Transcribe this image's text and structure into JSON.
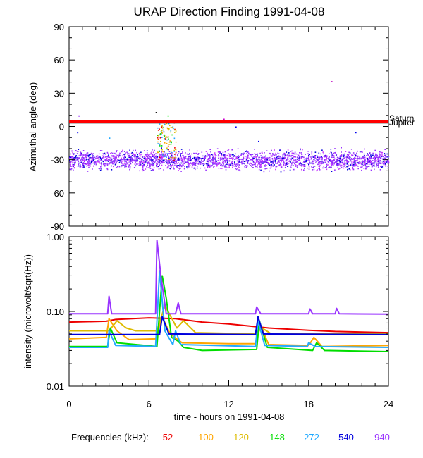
{
  "title": "URAP Direction Finding  1991-04-08",
  "xlabel": "time - hours on 1991-04-08",
  "freq_legend_label": "Frequencies (kHz):",
  "chart_data": [
    {
      "type": "scatter",
      "ylabel": "Azimuthal angle (deg)",
      "xlim": [
        0,
        24
      ],
      "ylim": [
        -90,
        90
      ],
      "x_ticks": [
        0,
        6,
        12,
        18,
        24
      ],
      "y_ticks": [
        90,
        60,
        30,
        0,
        -30,
        -60,
        -90
      ],
      "reference_lines": [
        {
          "y": 4.5,
          "color": "#ff0000"
        },
        {
          "y": 3.0,
          "color": "#000000"
        }
      ],
      "edge_labels": [
        "Saturn",
        "Jupiter"
      ],
      "band_center": -30,
      "band_halfwidth": 12,
      "burst": {
        "x": [
          6.6,
          8.0
        ],
        "y": [
          -30,
          5
        ]
      },
      "outlier_points": [
        {
          "x": 19.7,
          "y": 41,
          "color": "#cc33cc"
        },
        {
          "x": 6.5,
          "y": 13,
          "color": "#000000"
        },
        {
          "x": 7.4,
          "y": 10,
          "color": "#00ee00"
        },
        {
          "x": 12.0,
          "y": 6,
          "color": "#cc00cc"
        },
        {
          "x": 11.6,
          "y": 7,
          "color": "#cc00cc"
        },
        {
          "x": 12.5,
          "y": 0,
          "color": "#0000ee"
        },
        {
          "x": 0.7,
          "y": 10,
          "color": "#9933ff"
        },
        {
          "x": 0.6,
          "y": -5,
          "color": "#0000ee"
        },
        {
          "x": 3.0,
          "y": -10,
          "color": "#22aaff"
        },
        {
          "x": 21.5,
          "y": -5,
          "color": "#0000ee"
        },
        {
          "x": 14.2,
          "y": -13,
          "color": "#0000ee"
        }
      ]
    },
    {
      "type": "line",
      "ylabel": "intensity (microvolt/sqrt(Hz))",
      "yscale": "log",
      "xlim": [
        0,
        24
      ],
      "ylim": [
        0.01,
        1.0
      ],
      "x_ticks": [
        0,
        6,
        12,
        18,
        24
      ],
      "y_tick_labels": [
        "1.00",
        "0.10",
        "0.01"
      ],
      "y_tick_values": [
        1.0,
        0.1,
        0.01
      ],
      "series": [
        {
          "name": "52",
          "color": "#ee0000",
          "x": [
            0,
            2.8,
            3.5,
            6,
            8,
            10,
            12,
            15,
            18,
            20,
            22,
            24
          ],
          "y": [
            0.072,
            0.074,
            0.078,
            0.082,
            0.08,
            0.072,
            0.068,
            0.06,
            0.056,
            0.054,
            0.053,
            0.052
          ]
        },
        {
          "name": "100",
          "color": "#ffa500",
          "x": [
            0,
            2.8,
            3.0,
            3.6,
            4.5,
            6.5,
            7.0,
            7.6,
            8.5,
            12,
            14,
            14.4,
            15,
            18,
            18.4,
            19,
            24
          ],
          "y": [
            0.043,
            0.045,
            0.08,
            0.055,
            0.042,
            0.043,
            0.085,
            0.05,
            0.038,
            0.037,
            0.037,
            0.065,
            0.036,
            0.035,
            0.045,
            0.034,
            0.035
          ]
        },
        {
          "name": "120",
          "color": "#ddbb00",
          "x": [
            0,
            3.0,
            3.6,
            4.3,
            5.0,
            6.6,
            7.2,
            8.1,
            8.6,
            9.5,
            14,
            14.5,
            15.2,
            24
          ],
          "y": [
            0.055,
            0.055,
            0.075,
            0.06,
            0.055,
            0.055,
            0.12,
            0.06,
            0.075,
            0.052,
            0.05,
            0.06,
            0.05,
            0.05
          ]
        },
        {
          "name": "148",
          "color": "#00dd00",
          "x": [
            0,
            2.9,
            3.1,
            3.6,
            6.6,
            7.0,
            7.3,
            7.7,
            8.2,
            8.6,
            10,
            14.1,
            14.3,
            14.9,
            18.3,
            18.6,
            19.2,
            24
          ],
          "y": [
            0.034,
            0.034,
            0.06,
            0.038,
            0.034,
            0.3,
            0.15,
            0.045,
            0.04,
            0.033,
            0.03,
            0.031,
            0.075,
            0.033,
            0.03,
            0.038,
            0.03,
            0.029
          ]
        },
        {
          "name": "272",
          "color": "#22aaff",
          "x": [
            0,
            2.9,
            3.0,
            3.5,
            6.5,
            6.8,
            7.2,
            7.8,
            8.0,
            8.4,
            14.0,
            14.2,
            14.7,
            17.9,
            18.0,
            18.5,
            24
          ],
          "y": [
            0.033,
            0.033,
            0.055,
            0.035,
            0.034,
            0.35,
            0.055,
            0.036,
            0.055,
            0.036,
            0.034,
            0.075,
            0.035,
            0.034,
            0.038,
            0.034,
            0.033
          ]
        },
        {
          "name": "540",
          "color": "#0000dd",
          "x": [
            0,
            6.8,
            7.0,
            7.5,
            14.0,
            14.2,
            14.6,
            24
          ],
          "y": [
            0.049,
            0.049,
            0.085,
            0.05,
            0.049,
            0.085,
            0.05,
            0.049
          ]
        },
        {
          "name": "940",
          "color": "#9933ff",
          "x": [
            0,
            2.9,
            3.0,
            3.2,
            6.5,
            6.6,
            6.9,
            7.3,
            8.0,
            8.2,
            8.4,
            14.0,
            14.1,
            14.4,
            18.0,
            18.1,
            18.3,
            20,
            20.1,
            20.3,
            24
          ],
          "y": [
            0.093,
            0.093,
            0.16,
            0.093,
            0.093,
            0.9,
            0.3,
            0.093,
            0.093,
            0.13,
            0.093,
            0.093,
            0.115,
            0.093,
            0.093,
            0.108,
            0.093,
            0.093,
            0.11,
            0.093,
            0.092
          ]
        }
      ]
    }
  ]
}
